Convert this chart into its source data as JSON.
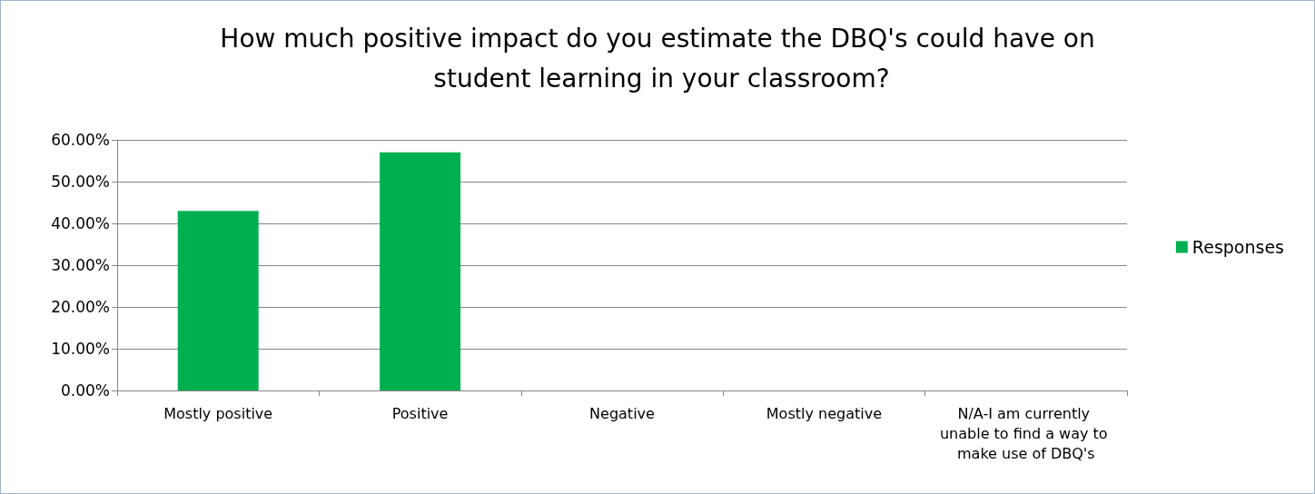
{
  "chart_data": {
    "type": "bar",
    "title": "How much positive impact do you estimate the DBQ's could have on student learning in your classroom?",
    "categories": [
      "Mostly positive",
      "Positive",
      "Negative",
      "Mostly negative",
      "N/A-I am currently unable to find a way to make use of DBQ's"
    ],
    "series": [
      {
        "name": "Responses",
        "color": "#00b050",
        "values": [
          43,
          57,
          0,
          0,
          0
        ]
      }
    ],
    "ylim": [
      0,
      60
    ],
    "yticks": [
      {
        "value": 0,
        "label": "0.00%"
      },
      {
        "value": 10,
        "label": "10.00%"
      },
      {
        "value": 20,
        "label": "20.00%"
      },
      {
        "value": 30,
        "label": "30.00%"
      },
      {
        "value": 40,
        "label": "40.00%"
      },
      {
        "value": 50,
        "label": "50.00%"
      },
      {
        "value": 60,
        "label": "60.00%"
      }
    ],
    "grid": "y",
    "legend": "right"
  }
}
